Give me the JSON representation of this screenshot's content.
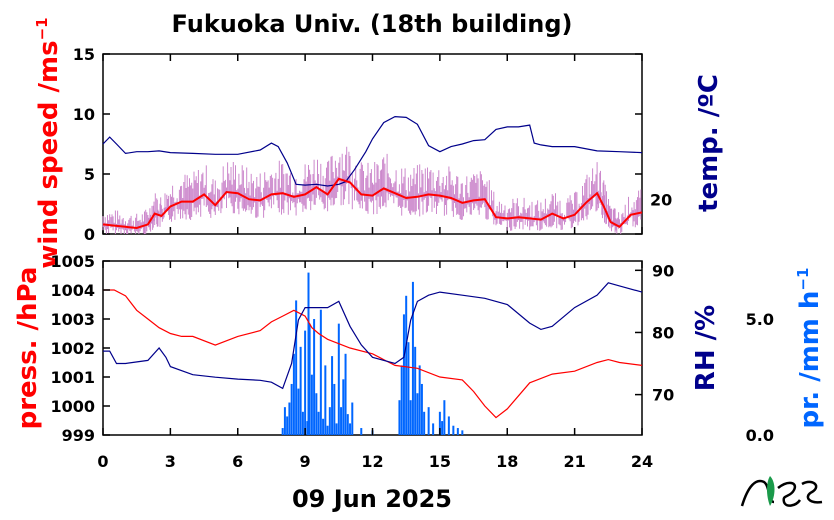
{
  "chart_data": [
    {
      "type": "line",
      "title": "Fukuoka Univ. (18th building)",
      "xlabel": "09 Jun 2025",
      "x_ticks": [
        0,
        3,
        6,
        9,
        12,
        15,
        18,
        21,
        24
      ],
      "xlim": [
        0,
        24
      ],
      "y_left": {
        "label": "wind speed /ms",
        "label_sup": "−1",
        "ticks": [
          0,
          5,
          10,
          15
        ],
        "ylim": [
          0,
          15
        ],
        "color": "#ff0000"
      },
      "y_right": {
        "label": "temp. /ºC",
        "ticks": [
          20
        ],
        "ylim": [
          16,
          37
        ],
        "color": "#00008b"
      },
      "series": [
        {
          "axis": "left",
          "color": "#ff0000",
          "gust_color": "#cc88cc",
          "x": [
            0,
            0.5,
            1,
            1.5,
            2,
            2.3,
            2.6,
            3,
            3.5,
            4,
            4.5,
            5,
            5.5,
            6,
            6.5,
            7,
            7.5,
            8,
            8.5,
            9,
            9.5,
            10,
            10.5,
            11,
            11.5,
            12,
            12.5,
            13,
            13.5,
            14,
            14.5,
            15,
            15.5,
            16,
            16.5,
            17,
            17.5,
            18,
            18.5,
            19,
            19.5,
            20,
            20.5,
            21,
            21.5,
            22,
            22.3,
            22.6,
            23,
            23.5,
            24
          ],
          "values": [
            0.8,
            0.7,
            0.6,
            0.5,
            0.8,
            1.7,
            1.5,
            2.3,
            2.7,
            2.7,
            3.3,
            2.4,
            3.5,
            3.4,
            2.9,
            2.8,
            3.3,
            3.4,
            3.1,
            3.3,
            3.9,
            3.3,
            4.6,
            4.3,
            3.3,
            3.2,
            3.8,
            3.4,
            3.0,
            3.1,
            3.3,
            3.2,
            3.0,
            2.6,
            2.8,
            2.9,
            1.4,
            1.3,
            1.4,
            1.3,
            1.2,
            1.7,
            1.3,
            1.6,
            2.6,
            3.4,
            2.3,
            1.0,
            0.6,
            1.6,
            1.8
          ]
        },
        {
          "axis": "right",
          "color": "#00008b",
          "x": [
            0,
            0.3,
            0.6,
            1,
            1.5,
            2,
            2.5,
            3,
            4,
            5,
            6,
            7,
            7.5,
            7.8,
            8.2,
            8.6,
            9,
            9.5,
            10,
            10.5,
            10.8,
            11.2,
            11.7,
            12,
            12.5,
            13,
            13.5,
            14,
            14.5,
            15,
            15.5,
            16,
            16.5,
            17,
            17.5,
            18,
            18.5,
            19,
            19.2,
            19.5,
            20,
            21,
            22,
            23,
            24
          ],
          "values": [
            26.5,
            27.3,
            26.5,
            25.4,
            25.6,
            25.6,
            25.7,
            25.5,
            25.4,
            25.3,
            25.3,
            25.8,
            26.6,
            26.2,
            24.3,
            21.8,
            21.7,
            21.8,
            21.6,
            21.8,
            22.1,
            23.5,
            25.6,
            27.1,
            29.0,
            29.7,
            29.6,
            28.8,
            26.3,
            25.6,
            26.2,
            26.5,
            26.9,
            27.0,
            28.2,
            28.5,
            28.5,
            28.7,
            26.6,
            26.4,
            26.2,
            26.2,
            25.7,
            25.6,
            25.5
          ]
        }
      ]
    },
    {
      "type": "line",
      "xlabel": "09 Jun 2025",
      "x_ticks": [
        0,
        3,
        6,
        9,
        12,
        15,
        18,
        21,
        24
      ],
      "xlim": [
        0,
        24
      ],
      "y_left": {
        "label": "press. /hPa",
        "ticks": [
          999,
          1000,
          1001,
          1002,
          1003,
          1004,
          1005
        ],
        "ylim": [
          999,
          1005
        ],
        "color": "#ff0000"
      },
      "y_right": {
        "label": "RH /%",
        "ticks": [
          70,
          80,
          90
        ],
        "ylim": [
          63.5,
          91.5
        ],
        "color": "#00008b"
      },
      "y_right2": {
        "label": "pr. /mm h",
        "label_sup": "−1",
        "ticks": [
          "0.0",
          "5.0"
        ],
        "ylim": [
          0,
          7.5
        ],
        "color": "#0066ff"
      },
      "series": [
        {
          "axis": "left",
          "color": "#ff0000",
          "x": [
            0,
            0.5,
            1,
            1.5,
            2,
            2.5,
            3,
            3.5,
            4,
            5,
            6,
            7,
            7.5,
            8,
            8.5,
            9,
            9.3,
            9.6,
            10,
            11,
            12,
            12.5,
            13,
            14,
            15,
            16,
            16.5,
            17,
            17.5,
            18,
            19,
            20,
            21,
            22,
            22.5,
            23,
            24
          ],
          "values": [
            1004.0,
            1004.0,
            1003.8,
            1003.3,
            1003.0,
            1002.7,
            1002.5,
            1002.4,
            1002.4,
            1002.1,
            1002.4,
            1002.6,
            1002.9,
            1003.1,
            1003.3,
            1003.1,
            1002.7,
            1002.5,
            1002.3,
            1002.0,
            1001.8,
            1001.6,
            1001.4,
            1001.3,
            1001.0,
            1000.9,
            1000.5,
            1000.0,
            999.6,
            999.9,
            1000.8,
            1001.1,
            1001.2,
            1001.5,
            1001.6,
            1001.5,
            1001.4
          ]
        },
        {
          "axis": "right",
          "color": "#00008b",
          "x": [
            0,
            0.3,
            0.6,
            1,
            2,
            2.5,
            2.8,
            3,
            4,
            5,
            6,
            7,
            7.5,
            8,
            8.4,
            8.7,
            9,
            9.5,
            10,
            10.5,
            11,
            11.5,
            12,
            13,
            13.4,
            13.7,
            14,
            14.5,
            15,
            16,
            17,
            18,
            19,
            19.5,
            20,
            21,
            22,
            22.5,
            23,
            24
          ],
          "values": [
            77.0,
            77.0,
            75.0,
            75.0,
            75.5,
            77.5,
            76.0,
            74.5,
            73.2,
            72.8,
            72.5,
            72.3,
            72.0,
            71.0,
            75.0,
            82.0,
            84.0,
            84.0,
            84.0,
            85.0,
            81.0,
            78.0,
            76.0,
            75.0,
            76.0,
            82.0,
            85.0,
            86.0,
            86.5,
            86.0,
            85.5,
            84.5,
            81.5,
            80.5,
            81.0,
            84.0,
            86.0,
            88.0,
            87.5,
            86.5
          ]
        },
        {
          "axis": "right2",
          "type": "bar",
          "color": "#0066ff",
          "x": [
            8.0,
            8.1,
            8.2,
            8.3,
            8.4,
            8.5,
            8.6,
            8.7,
            8.8,
            8.9,
            9.0,
            9.1,
            9.15,
            9.2,
            9.3,
            9.4,
            9.5,
            9.6,
            9.7,
            9.8,
            9.9,
            10.0,
            10.1,
            10.2,
            10.3,
            10.4,
            10.5,
            10.6,
            10.7,
            10.8,
            10.9,
            11.0,
            11.1,
            11.5,
            12.0,
            13.2,
            13.3,
            13.4,
            13.5,
            13.6,
            13.7,
            13.8,
            13.9,
            14.0,
            14.1,
            14.2,
            14.3,
            14.5,
            14.7,
            15.0,
            15.1,
            15.2,
            15.4,
            15.6,
            15.8,
            16.0
          ],
          "values": [
            0.3,
            1.2,
            0.8,
            1.4,
            2.2,
            3.5,
            5.8,
            2.0,
            3.8,
            1.0,
            4.5,
            0.6,
            7.0,
            4.8,
            2.6,
            5.0,
            1.8,
            1.0,
            5.4,
            0.7,
            3.0,
            0.4,
            1.2,
            3.4,
            2.2,
            0.5,
            4.8,
            1.2,
            2.4,
            3.5,
            0.9,
            0.5,
            1.4,
            0.3,
            0.2,
            1.5,
            3.0,
            5.2,
            6.0,
            4.0,
            1.5,
            6.6,
            3.8,
            1.8,
            3.0,
            2.2,
            1.0,
            1.2,
            0.5,
            1.0,
            0.6,
            1.5,
            0.8,
            0.4,
            0.3,
            0.2
          ]
        }
      ]
    }
  ],
  "logo_text": "NES"
}
